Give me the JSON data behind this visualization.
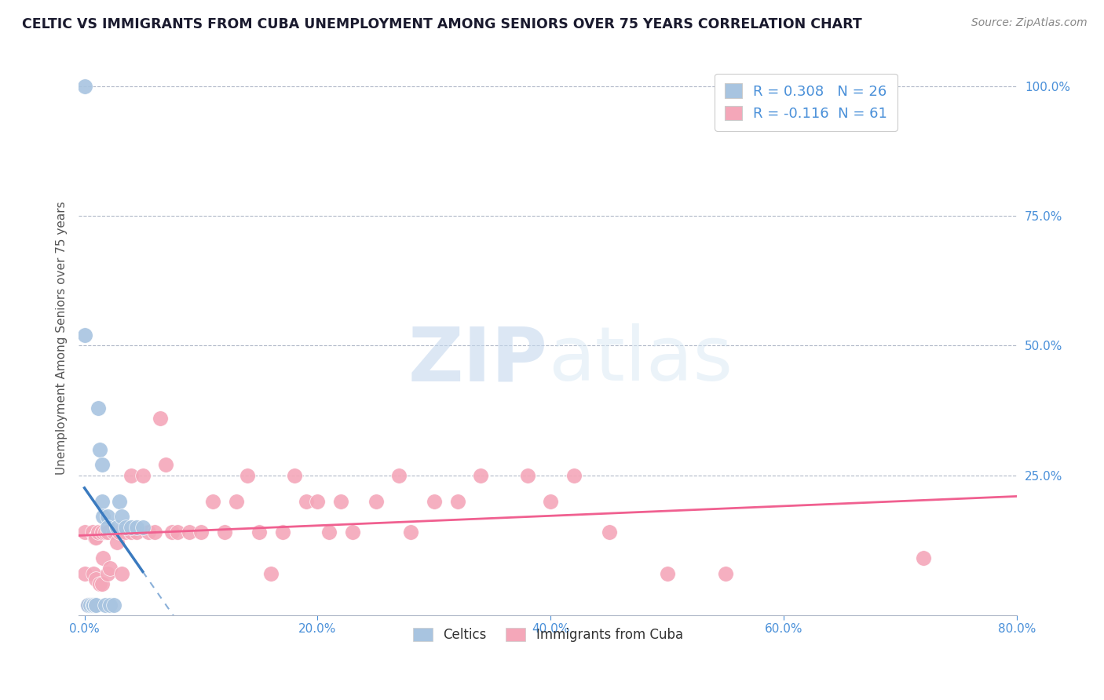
{
  "title": "CELTIC VS IMMIGRANTS FROM CUBA UNEMPLOYMENT AMONG SENIORS OVER 75 YEARS CORRELATION CHART",
  "source": "Source: ZipAtlas.com",
  "ylabel": "Unemployment Among Seniors over 75 years",
  "xlim": [
    -0.005,
    0.8
  ],
  "ylim": [
    -0.02,
    1.05
  ],
  "xticks": [
    0.0,
    0.2,
    0.4,
    0.6,
    0.8
  ],
  "xticklabels": [
    "0.0%",
    "20.0%",
    "40.0%",
    "60.0%",
    "80.0%"
  ],
  "yticks_right": [
    1.0,
    0.75,
    0.5,
    0.25
  ],
  "yticklabels_right": [
    "100.0%",
    "75.0%",
    "50.0%",
    "25.0%"
  ],
  "celtics_R": 0.308,
  "celtics_N": 26,
  "cuba_R": -0.116,
  "cuba_N": 61,
  "celtics_color": "#a8c4e0",
  "cuba_color": "#f4a7b9",
  "celtics_line_color": "#3a7abf",
  "cuba_line_color": "#f06090",
  "celtics_x": [
    0.0,
    0.0,
    0.003,
    0.005,
    0.007,
    0.008,
    0.01,
    0.01,
    0.01,
    0.012,
    0.013,
    0.015,
    0.015,
    0.016,
    0.018,
    0.02,
    0.02,
    0.022,
    0.025,
    0.028,
    0.03,
    0.032,
    0.035,
    0.04,
    0.045,
    0.05
  ],
  "celtics_y": [
    1.0,
    0.52,
    0.0,
    0.0,
    0.0,
    0.0,
    0.0,
    0.0,
    0.0,
    0.38,
    0.3,
    0.27,
    0.2,
    0.17,
    0.0,
    0.17,
    0.15,
    0.0,
    0.0,
    0.15,
    0.2,
    0.17,
    0.15,
    0.15,
    0.15,
    0.15
  ],
  "cuba_x": [
    0.0,
    0.0,
    0.003,
    0.005,
    0.007,
    0.008,
    0.009,
    0.01,
    0.01,
    0.012,
    0.013,
    0.015,
    0.015,
    0.016,
    0.018,
    0.02,
    0.02,
    0.022,
    0.025,
    0.028,
    0.03,
    0.032,
    0.035,
    0.04,
    0.04,
    0.045,
    0.05,
    0.055,
    0.06,
    0.065,
    0.07,
    0.075,
    0.08,
    0.09,
    0.1,
    0.11,
    0.12,
    0.13,
    0.14,
    0.15,
    0.16,
    0.17,
    0.18,
    0.19,
    0.2,
    0.21,
    0.22,
    0.23,
    0.25,
    0.27,
    0.28,
    0.3,
    0.32,
    0.34,
    0.38,
    0.4,
    0.42,
    0.45,
    0.5,
    0.55,
    0.72
  ],
  "cuba_y": [
    0.14,
    0.06,
    0.0,
    0.0,
    0.14,
    0.06,
    0.13,
    0.13,
    0.05,
    0.14,
    0.04,
    0.14,
    0.04,
    0.09,
    0.14,
    0.14,
    0.06,
    0.07,
    0.14,
    0.12,
    0.14,
    0.06,
    0.14,
    0.14,
    0.25,
    0.14,
    0.25,
    0.14,
    0.14,
    0.36,
    0.27,
    0.14,
    0.14,
    0.14,
    0.14,
    0.2,
    0.14,
    0.2,
    0.25,
    0.14,
    0.06,
    0.14,
    0.25,
    0.2,
    0.2,
    0.14,
    0.2,
    0.14,
    0.2,
    0.25,
    0.14,
    0.2,
    0.2,
    0.25,
    0.25,
    0.2,
    0.25,
    0.14,
    0.06,
    0.06,
    0.09
  ],
  "watermark_zip": "ZIP",
  "watermark_atlas": "atlas",
  "background_color": "#ffffff",
  "grid_color": "#b0b8c8",
  "title_color": "#1a1a2e",
  "axis_label_color": "#555555",
  "tick_color": "#4a90d9",
  "legend_label_color": "#4a90d9"
}
